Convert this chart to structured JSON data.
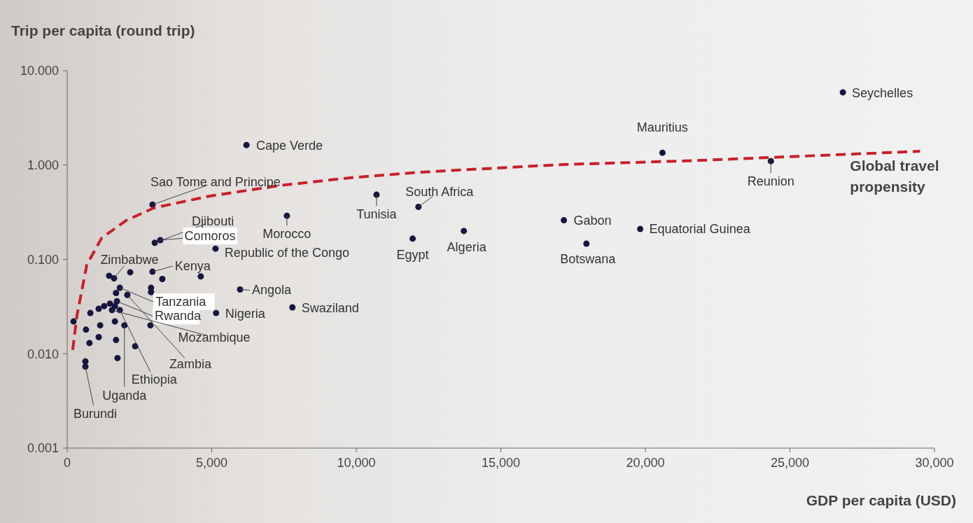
{
  "chart_data": {
    "type": "scatter",
    "xlabel": "GDP per capita (USD)",
    "ylabel": "Trip per capita (round trip)",
    "log": "y",
    "grid": false,
    "legend": false,
    "marker": "circle",
    "xlim": [
      0,
      30000
    ],
    "xticks": [
      0,
      {
        "value": 5000,
        "label": "5,000"
      },
      {
        "value": 10000,
        "label": "10,000"
      },
      {
        "value": 15000,
        "label": "15,000"
      },
      {
        "value": 20000,
        "label": "20,000"
      },
      {
        "value": 25000,
        "label": "25,000"
      },
      {
        "value": 30000,
        "label": "30,000"
      }
    ],
    "ylim": [
      0.001,
      10
    ],
    "yticks": [
      {
        "value": 0.001,
        "label": "0.001"
      },
      {
        "value": 0.01,
        "label": "0.010"
      },
      {
        "value": 0.1,
        "label": "0.100"
      },
      {
        "value": 1,
        "label": "1.000"
      },
      {
        "value": 10,
        "label": "10.000"
      }
    ],
    "series": [
      {
        "type": "scatter",
        "color": "#15153f",
        "x": [
          26830,
          20590,
          24340,
          6200,
          2950,
          10700,
          12150,
          11950,
          13720,
          17180,
          17960,
          19820,
          7600,
          3030,
          3220,
          5130,
          1620,
          2950,
          5980,
          7790,
          5150,
          1820,
          1720,
          1550,
          2080,
          1820,
          1980,
          630,
          1450,
          2180,
          3290,
          4620,
          1690,
          2900,
          2900,
          800,
          1090,
          1280,
          1480,
          1650,
          220,
          1140,
          1650,
          2880,
          650,
          1090,
          770,
          1690,
          2350,
          630,
          1740
        ],
        "values": [
          5.9,
          1.35,
          1.1,
          1.63,
          0.38,
          0.485,
          0.36,
          0.166,
          0.2,
          0.26,
          0.147,
          0.21,
          0.29,
          0.15,
          0.16,
          0.13,
          0.063,
          0.074,
          0.048,
          0.031,
          0.027,
          0.05,
          0.036,
          0.029,
          0.042,
          0.029,
          0.02,
          0.0073,
          0.067,
          0.073,
          0.062,
          0.066,
          0.044,
          0.05,
          0.045,
          0.027,
          0.03,
          0.032,
          0.034,
          0.032,
          0.022,
          0.02,
          0.022,
          0.02,
          0.018,
          0.015,
          0.013,
          0.014,
          0.012,
          0.0083,
          0.009
        ]
      },
      {
        "type": "line",
        "name": "Global travel propensity",
        "color": "#c8202a",
        "line_style": "dashed",
        "marker": "none",
        "x": [
          190,
          340,
          680,
          1190,
          2030,
          3000,
          4940,
          7360,
          9780,
          12200,
          17040,
          21880,
          29500
        ],
        "values": [
          0.011,
          0.0257,
          0.088,
          0.168,
          0.258,
          0.351,
          0.47,
          0.607,
          0.733,
          0.84,
          1.01,
          1.12,
          1.4
        ]
      }
    ],
    "annotations": [
      {
        "text": "Seychelles",
        "x": 26830,
        "y": 5.9
      },
      {
        "text": "Mauritius",
        "x": 20590,
        "y": 1.35
      },
      {
        "text": "Reunion",
        "x": 24340,
        "y": 1.1
      },
      {
        "text": "Cape Verde",
        "x": 6200,
        "y": 1.63
      },
      {
        "text": "Sao Tome and Principe",
        "x": 2950,
        "y": 0.38
      },
      {
        "text": "Tunisia",
        "x": 10700,
        "y": 0.485
      },
      {
        "text": "South Africa",
        "x": 12150,
        "y": 0.36
      },
      {
        "text": "Egypt",
        "x": 11950,
        "y": 0.166
      },
      {
        "text": "Algeria",
        "x": 13720,
        "y": 0.2
      },
      {
        "text": "Gabon",
        "x": 17180,
        "y": 0.26
      },
      {
        "text": "Botswana",
        "x": 17960,
        "y": 0.147
      },
      {
        "text": "Equatorial Guinea",
        "x": 19820,
        "y": 0.21
      },
      {
        "text": "Morocco",
        "x": 7600,
        "y": 0.29
      },
      {
        "text": "Djibouti",
        "x": 3030,
        "y": 0.15
      },
      {
        "text": "Comoros",
        "x": 3220,
        "y": 0.16
      },
      {
        "text": "Republic of the Congo",
        "x": 5130,
        "y": 0.13
      },
      {
        "text": "Zimbabwe",
        "x": 1620,
        "y": 0.063
      },
      {
        "text": "Kenya",
        "x": 2950,
        "y": 0.074
      },
      {
        "text": "Angola",
        "x": 5980,
        "y": 0.048
      },
      {
        "text": "Swaziland",
        "x": 7790,
        "y": 0.031
      },
      {
        "text": "Nigeria",
        "x": 5150,
        "y": 0.027
      },
      {
        "text": "Tanzania",
        "x": 1820,
        "y": 0.05
      },
      {
        "text": "Rwanda",
        "x": 1720,
        "y": 0.036
      },
      {
        "text": "Mozambique",
        "x": 1550,
        "y": 0.029
      },
      {
        "text": "Zambia",
        "x": 2080,
        "y": 0.042
      },
      {
        "text": "Ethiopia",
        "x": 1820,
        "y": 0.029
      },
      {
        "text": "Uganda",
        "x": 1980,
        "y": 0.02
      },
      {
        "text": "Burundi",
        "x": 630,
        "y": 0.0073
      }
    ]
  }
}
